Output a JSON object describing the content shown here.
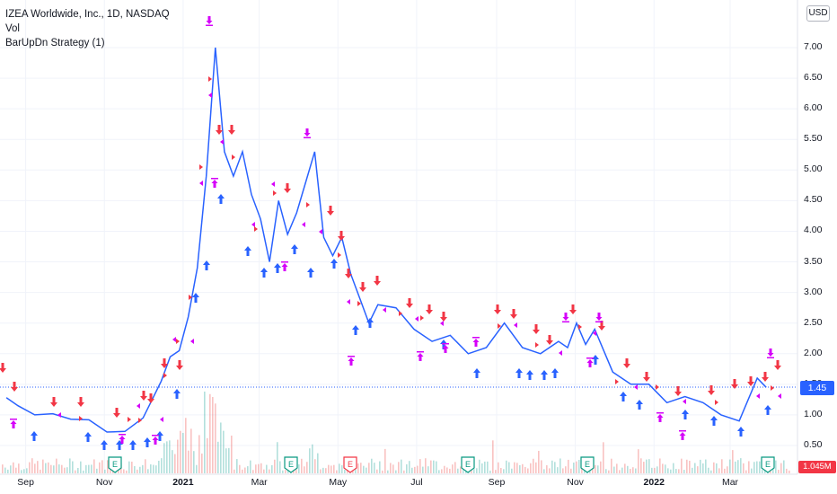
{
  "legend": {
    "title": "IZEA Worldwide, Inc., 1D, NASDAQ",
    "vol": "Vol",
    "strategy": "BarUpDn Strategy (1)"
  },
  "currency": "USD",
  "last_price_label": "1.45",
  "volume_label": "1.045M",
  "colors": {
    "line": "#2962ff",
    "long": "#2962ff",
    "short": "#f23645",
    "exit": "#d500f9",
    "earnings": "#089981",
    "vol_up": "#26a69a",
    "vol_down": "#ef5350"
  },
  "chart_data": {
    "type": "line",
    "title": "IZEA Worldwide, Inc., 1D, NASDAQ",
    "ylim": [
      0.3,
      7.45
    ],
    "y_ticks": [
      "7.00",
      "6.50",
      "6.00",
      "5.50",
      "5.00",
      "4.50",
      "4.00",
      "3.50",
      "3.00",
      "2.50",
      "2.00",
      "1.50",
      "1.00",
      "0.50"
    ],
    "x_ticks": [
      "Sep",
      "Nov",
      "2021",
      "Mar",
      "May",
      "Jul",
      "Sep",
      "Nov",
      "2022",
      "Mar"
    ],
    "series": [
      {
        "x": [
          "2020-08-17",
          "2020-08-26",
          "2020-09-08",
          "2020-09-22",
          "2020-10-06",
          "2020-10-20",
          "2020-11-03",
          "2020-11-17",
          "2020-12-01",
          "2020-12-08",
          "2020-12-15",
          "2020-12-22",
          "2020-12-29",
          "2021-01-05",
          "2021-01-12",
          "2021-01-19",
          "2021-01-26",
          "2021-02-02",
          "2021-02-09",
          "2021-02-16",
          "2021-02-23",
          "2021-03-02",
          "2021-03-09",
          "2021-03-16",
          "2021-03-23",
          "2021-03-30",
          "2021-04-06",
          "2021-04-13",
          "2021-04-20",
          "2021-04-27",
          "2021-05-04",
          "2021-05-11",
          "2021-05-18",
          "2021-05-25",
          "2021-06-01",
          "2021-06-15",
          "2021-06-29",
          "2021-07-13",
          "2021-07-27",
          "2021-08-10",
          "2021-08-24",
          "2021-09-07",
          "2021-09-21",
          "2021-10-05",
          "2021-10-19",
          "2021-10-26",
          "2021-11-02",
          "2021-11-09",
          "2021-11-16",
          "2021-11-30",
          "2021-12-14",
          "2021-12-28",
          "2022-01-11",
          "2022-01-25",
          "2022-02-08",
          "2022-02-22",
          "2022-03-08",
          "2022-03-22",
          "2022-03-29"
        ],
        "y": [
          1.28,
          1.15,
          1.0,
          1.02,
          0.93,
          0.92,
          0.72,
          0.73,
          0.95,
          1.25,
          1.55,
          1.95,
          2.05,
          2.6,
          3.4,
          4.9,
          7.0,
          5.3,
          4.9,
          5.3,
          4.6,
          4.2,
          3.5,
          4.5,
          3.95,
          4.3,
          4.8,
          5.3,
          3.9,
          3.6,
          3.9,
          3.3,
          2.9,
          2.5,
          2.8,
          2.75,
          2.4,
          2.2,
          2.3,
          2.0,
          2.1,
          2.5,
          2.1,
          2.0,
          2.2,
          2.1,
          2.5,
          2.15,
          2.4,
          1.7,
          1.5,
          1.5,
          1.2,
          1.3,
          1.2,
          1.0,
          0.9,
          1.6,
          1.45
        ]
      }
    ]
  }
}
